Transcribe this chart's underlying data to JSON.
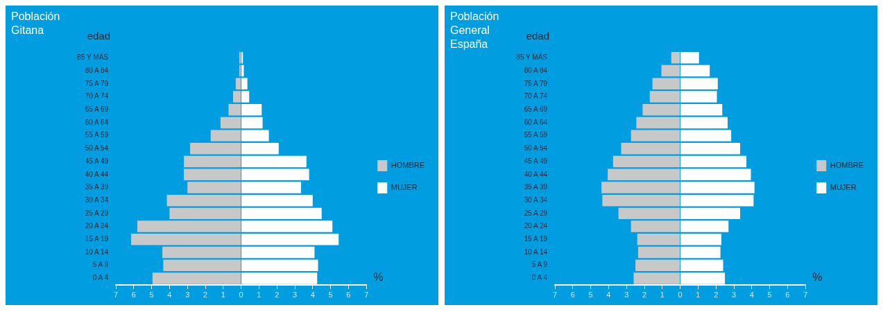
{
  "chart_data": [
    {
      "type": "bar",
      "orientation": "horizontal",
      "stacked": true,
      "title": "Población Gitana",
      "ylabel": "edad",
      "xlabel": "%",
      "legend": "right",
      "categories": [
        "85 Y MÁS",
        "80 A 84",
        "75 A 79",
        "70 A 74",
        "65 A 69",
        "60 A 64",
        "55 A 59",
        "50 A 54",
        "45 A 49",
        "40 A 44",
        "35 A 39",
        "30 A 34",
        "25 A 29",
        "20 A 24",
        "15 A 19",
        "10 A 14",
        "5 A 9",
        "0 A 4"
      ],
      "series": [
        {
          "name": "HOMBRE",
          "color": "#c8c8c8",
          "values": [
            -0.1,
            -0.1,
            -0.3,
            -0.45,
            -0.7,
            -1.15,
            -1.7,
            -2.85,
            -3.2,
            -3.2,
            -3.0,
            -4.15,
            -4.0,
            -5.8,
            -6.15,
            -4.4,
            -4.35,
            -4.95
          ]
        },
        {
          "name": "MUJER",
          "color": "#ffffff",
          "values": [
            0.1,
            0.15,
            0.35,
            0.45,
            1.15,
            1.2,
            1.55,
            2.1,
            3.65,
            3.8,
            3.35,
            4.0,
            4.5,
            5.1,
            5.45,
            4.1,
            4.3,
            4.25
          ]
        }
      ],
      "xlim": [
        -7,
        7
      ],
      "xticks": [
        {
          "value": -7,
          "label": "7"
        },
        {
          "value": -6,
          "label": "6"
        },
        {
          "value": -5,
          "label": "5"
        },
        {
          "value": -4,
          "label": "4"
        },
        {
          "value": -3,
          "label": "3"
        },
        {
          "value": -2,
          "label": "2"
        },
        {
          "value": -1,
          "label": "1"
        },
        0,
        1,
        2,
        3,
        4,
        5,
        6,
        7
      ]
    },
    {
      "type": "bar",
      "orientation": "horizontal",
      "stacked": true,
      "title": "Población General España",
      "ylabel": "edad",
      "xlabel": "%",
      "legend": "right",
      "categories": [
        "85 Y MÁS",
        "80 A 84",
        "75 A 79",
        "70 A 74",
        "65 A 69",
        "60 A 64",
        "55 A 59",
        "50 A 54",
        "45 A 49",
        "40 A 44",
        "35 A 39",
        "30 A 34",
        "25 A 29",
        "20 A 24",
        "15 A 19",
        "10 A 14",
        "5 A 9",
        "0 A 4"
      ],
      "series": [
        {
          "name": "HOMBRE",
          "color": "#c8c8c8",
          "values": [
            -0.5,
            -1.05,
            -1.55,
            -1.7,
            -2.1,
            -2.45,
            -2.75,
            -3.3,
            -3.75,
            -4.05,
            -4.4,
            -4.35,
            -3.45,
            -2.75,
            -2.4,
            -2.35,
            -2.5,
            -2.6
          ]
        },
        {
          "name": "MUJER",
          "color": "#ffffff",
          "values": [
            1.05,
            1.65,
            2.1,
            2.05,
            2.35,
            2.65,
            2.85,
            3.35,
            3.7,
            3.95,
            4.15,
            4.1,
            3.35,
            2.7,
            2.3,
            2.25,
            2.4,
            2.5
          ]
        }
      ],
      "xlim": [
        -7,
        7
      ],
      "xticks": [
        {
          "value": -7,
          "label": "7"
        },
        {
          "value": -6,
          "label": "6"
        },
        {
          "value": -5,
          "label": "5"
        },
        {
          "value": -4,
          "label": "4"
        },
        {
          "value": -3,
          "label": "3"
        },
        {
          "value": -2,
          "label": "2"
        },
        {
          "value": -1,
          "label": "1"
        },
        0,
        1,
        2,
        3,
        4,
        5,
        6,
        7
      ]
    }
  ]
}
